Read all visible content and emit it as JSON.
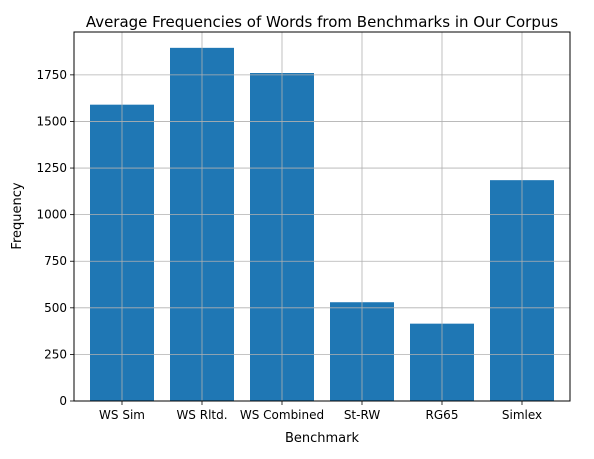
{
  "chart_data": {
    "type": "bar",
    "title": "Average Frequencies of Words from Benchmarks in Our Corpus",
    "xlabel": "Benchmark",
    "ylabel": "Frequency",
    "categories": [
      "WS Sim",
      "WS Rltd.",
      "WS Combined",
      "St-RW",
      "RG65",
      "Simlex"
    ],
    "values": [
      1590,
      1895,
      1760,
      530,
      415,
      1185
    ],
    "ylim": [
      0,
      1980
    ],
    "yticks": [
      0,
      250,
      500,
      750,
      1000,
      1250,
      1500,
      1750
    ],
    "grid": true,
    "legend": "none",
    "bar_color": "#1f77b4",
    "grid_color": "#b0b0b0"
  }
}
